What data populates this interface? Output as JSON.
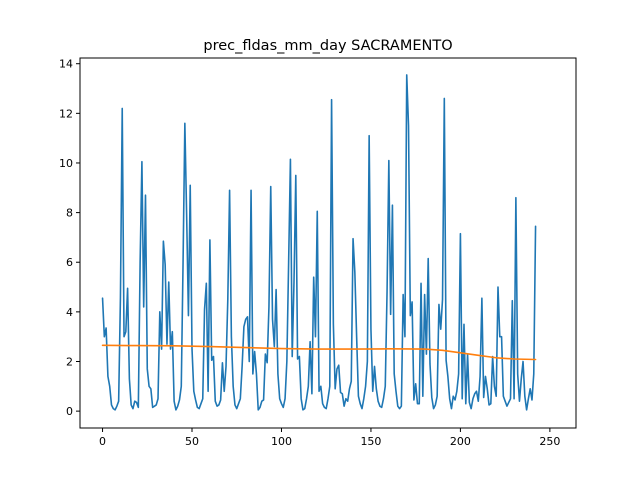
{
  "chart_data": {
    "type": "line",
    "title": "prec_fldas_mm_day SACRAMENTO",
    "xlabel": "",
    "ylabel": "",
    "xlim": [
      -12.6,
      264.6
    ],
    "ylim": [
      -0.68,
      14.23
    ],
    "x_ticks": [
      0,
      50,
      100,
      150,
      200,
      250
    ],
    "y_ticks": [
      0,
      2,
      4,
      6,
      8,
      10,
      12,
      14
    ],
    "grid": false,
    "series": [
      {
        "color": "#1f77b4",
        "points": [
          [
            0,
            4.55
          ],
          [
            1,
            3.0
          ],
          [
            2,
            3.35
          ],
          [
            3,
            1.4
          ],
          [
            4,
            1.0
          ],
          [
            5,
            0.25
          ],
          [
            6,
            0.1
          ],
          [
            7,
            0.05
          ],
          [
            8,
            0.2
          ],
          [
            9,
            0.4
          ],
          [
            10,
            4.6
          ],
          [
            11,
            12.2
          ],
          [
            12,
            3.0
          ],
          [
            13,
            3.2
          ],
          [
            14,
            4.95
          ],
          [
            15,
            1.3
          ],
          [
            16,
            0.25
          ],
          [
            17,
            0.1
          ],
          [
            18,
            0.4
          ],
          [
            19,
            0.35
          ],
          [
            20,
            0.15
          ],
          [
            21,
            6.0
          ],
          [
            22,
            10.05
          ],
          [
            23,
            4.2
          ],
          [
            24,
            8.7
          ],
          [
            25,
            1.7
          ],
          [
            26,
            1.0
          ],
          [
            27,
            0.9
          ],
          [
            28,
            0.15
          ],
          [
            29,
            0.2
          ],
          [
            30,
            0.25
          ],
          [
            31,
            0.5
          ],
          [
            32,
            4.0
          ],
          [
            33,
            2.5
          ],
          [
            34,
            6.85
          ],
          [
            35,
            5.9
          ],
          [
            36,
            2.7
          ],
          [
            37,
            5.2
          ],
          [
            38,
            2.5
          ],
          [
            39,
            3.2
          ],
          [
            40,
            0.4
          ],
          [
            41,
            0.05
          ],
          [
            42,
            0.2
          ],
          [
            43,
            0.45
          ],
          [
            44,
            1.0
          ],
          [
            45,
            6.0
          ],
          [
            46,
            11.6
          ],
          [
            47,
            7.9
          ],
          [
            48,
            3.85
          ],
          [
            49,
            9.1
          ],
          [
            50,
            2.5
          ],
          [
            51,
            0.8
          ],
          [
            52,
            0.45
          ],
          [
            53,
            0.15
          ],
          [
            54,
            0.1
          ],
          [
            55,
            0.3
          ],
          [
            56,
            0.5
          ],
          [
            57,
            4.1
          ],
          [
            58,
            5.15
          ],
          [
            59,
            0.8
          ],
          [
            60,
            6.9
          ],
          [
            61,
            2.05
          ],
          [
            62,
            2.2
          ],
          [
            63,
            0.4
          ],
          [
            64,
            0.2
          ],
          [
            65,
            0.25
          ],
          [
            66,
            0.45
          ],
          [
            67,
            1.95
          ],
          [
            68,
            0.8
          ],
          [
            69,
            1.8
          ],
          [
            70,
            4.5
          ],
          [
            71,
            8.9
          ],
          [
            72,
            3.0
          ],
          [
            73,
            1.0
          ],
          [
            74,
            0.25
          ],
          [
            75,
            0.1
          ],
          [
            76,
            0.3
          ],
          [
            77,
            0.5
          ],
          [
            78,
            1.8
          ],
          [
            79,
            3.4
          ],
          [
            80,
            3.7
          ],
          [
            81,
            3.8
          ],
          [
            82,
            2.0
          ],
          [
            83,
            8.9
          ],
          [
            84,
            1.5
          ],
          [
            85,
            2.4
          ],
          [
            86,
            1.5
          ],
          [
            87,
            0.05
          ],
          [
            88,
            0.15
          ],
          [
            89,
            0.4
          ],
          [
            90,
            0.45
          ],
          [
            91,
            2.3
          ],
          [
            92,
            1.95
          ],
          [
            93,
            4.2
          ],
          [
            94,
            9.05
          ],
          [
            95,
            3.7
          ],
          [
            96,
            2.6
          ],
          [
            97,
            4.9
          ],
          [
            98,
            1.5
          ],
          [
            99,
            0.5
          ],
          [
            100,
            0.3
          ],
          [
            101,
            0.15
          ],
          [
            102,
            0.5
          ],
          [
            103,
            2.0
          ],
          [
            104,
            6.0
          ],
          [
            105,
            10.15
          ],
          [
            106,
            2.2
          ],
          [
            107,
            5.2
          ],
          [
            108,
            9.5
          ],
          [
            109,
            2.1
          ],
          [
            110,
            2.2
          ],
          [
            111,
            0.5
          ],
          [
            112,
            0.05
          ],
          [
            113,
            0.1
          ],
          [
            114,
            0.5
          ],
          [
            115,
            1.0
          ],
          [
            116,
            2.8
          ],
          [
            117,
            0.7
          ],
          [
            118,
            5.4
          ],
          [
            119,
            3.0
          ],
          [
            120,
            8.05
          ],
          [
            121,
            0.8
          ],
          [
            122,
            1.0
          ],
          [
            123,
            0.3
          ],
          [
            124,
            0.15
          ],
          [
            125,
            0.1
          ],
          [
            126,
            0.5
          ],
          [
            127,
            1.0
          ],
          [
            128,
            12.55
          ],
          [
            129,
            3.5
          ],
          [
            130,
            0.9
          ],
          [
            131,
            1.7
          ],
          [
            132,
            1.85
          ],
          [
            133,
            0.75
          ],
          [
            134,
            0.7
          ],
          [
            135,
            0.2
          ],
          [
            136,
            0.5
          ],
          [
            137,
            0.4
          ],
          [
            138,
            0.9
          ],
          [
            139,
            1.2
          ],
          [
            140,
            6.95
          ],
          [
            141,
            5.6
          ],
          [
            142,
            3.0
          ],
          [
            143,
            0.6
          ],
          [
            144,
            0.3
          ],
          [
            145,
            0.1
          ],
          [
            146,
            0.5
          ],
          [
            147,
            1.0
          ],
          [
            148,
            2.0
          ],
          [
            149,
            11.1
          ],
          [
            150,
            3.3
          ],
          [
            151,
            0.8
          ],
          [
            152,
            1.8
          ],
          [
            153,
            0.9
          ],
          [
            154,
            0.4
          ],
          [
            155,
            0.2
          ],
          [
            156,
            0.15
          ],
          [
            157,
            0.5
          ],
          [
            158,
            1.0
          ],
          [
            159,
            4.8
          ],
          [
            160,
            10.1
          ],
          [
            161,
            3.9
          ],
          [
            162,
            8.3
          ],
          [
            163,
            1.5
          ],
          [
            164,
            0.8
          ],
          [
            165,
            0.2
          ],
          [
            166,
            0.1
          ],
          [
            167,
            0.2
          ],
          [
            168,
            4.7
          ],
          [
            169,
            3.0
          ],
          [
            170,
            13.55
          ],
          [
            171,
            11.5
          ],
          [
            172,
            3.85
          ],
          [
            173,
            4.4
          ],
          [
            174,
            0.45
          ],
          [
            175,
            1.1
          ],
          [
            176,
            0.3
          ],
          [
            177,
            0.3
          ],
          [
            178,
            5.15
          ],
          [
            179,
            0.6
          ],
          [
            180,
            4.7
          ],
          [
            181,
            2.3
          ],
          [
            182,
            6.15
          ],
          [
            183,
            1.9
          ],
          [
            184,
            0.55
          ],
          [
            185,
            0.1
          ],
          [
            186,
            0.25
          ],
          [
            187,
            0.6
          ],
          [
            188,
            4.3
          ],
          [
            189,
            3.3
          ],
          [
            190,
            4.5
          ],
          [
            191,
            12.6
          ],
          [
            192,
            2.05
          ],
          [
            193,
            1.4
          ],
          [
            194,
            0.5
          ],
          [
            195,
            0.1
          ],
          [
            196,
            0.6
          ],
          [
            197,
            0.45
          ],
          [
            198,
            0.8
          ],
          [
            199,
            1.5
          ],
          [
            200,
            7.15
          ],
          [
            201,
            0.5
          ],
          [
            202,
            3.5
          ],
          [
            203,
            0.3
          ],
          [
            204,
            2.3
          ],
          [
            205,
            0.35
          ],
          [
            206,
            0.1
          ],
          [
            207,
            0.5
          ],
          [
            208,
            0.7
          ],
          [
            209,
            0.8
          ],
          [
            210,
            0.4
          ],
          [
            211,
            1.4
          ],
          [
            212,
            4.55
          ],
          [
            213,
            0.55
          ],
          [
            214,
            1.4
          ],
          [
            215,
            0.9
          ],
          [
            216,
            0.25
          ],
          [
            217,
            0.3
          ],
          [
            218,
            2.2
          ],
          [
            219,
            1.0
          ],
          [
            220,
            0.6
          ],
          [
            221,
            5.0
          ],
          [
            222,
            3.0
          ],
          [
            223,
            3.0
          ],
          [
            224,
            0.6
          ],
          [
            225,
            0.4
          ],
          [
            226,
            0.2
          ],
          [
            227,
            0.35
          ],
          [
            228,
            0.5
          ],
          [
            229,
            4.45
          ],
          [
            230,
            0.5
          ],
          [
            231,
            8.6
          ],
          [
            232,
            1.5
          ],
          [
            233,
            0.4
          ],
          [
            234,
            1.3
          ],
          [
            235,
            2.0
          ],
          [
            236,
            0.6
          ],
          [
            237,
            0.05
          ],
          [
            238,
            0.5
          ],
          [
            239,
            0.9
          ],
          [
            240,
            0.45
          ],
          [
            241,
            1.5
          ],
          [
            242,
            7.45
          ]
        ]
      },
      {
        "color": "#ff7f0e",
        "points": [
          [
            0,
            2.65
          ],
          [
            20,
            2.64
          ],
          [
            40,
            2.63
          ],
          [
            60,
            2.6
          ],
          [
            80,
            2.56
          ],
          [
            100,
            2.52
          ],
          [
            120,
            2.5
          ],
          [
            140,
            2.5
          ],
          [
            160,
            2.51
          ],
          [
            180,
            2.5
          ],
          [
            190,
            2.45
          ],
          [
            200,
            2.35
          ],
          [
            210,
            2.25
          ],
          [
            220,
            2.15
          ],
          [
            230,
            2.1
          ],
          [
            242,
            2.08
          ]
        ]
      }
    ]
  }
}
